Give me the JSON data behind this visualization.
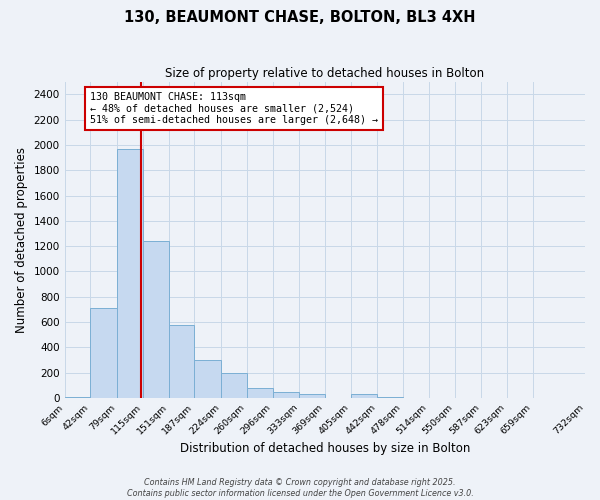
{
  "title": "130, BEAUMONT CHASE, BOLTON, BL3 4XH",
  "subtitle": "Size of property relative to detached houses in Bolton",
  "xlabel": "Distribution of detached houses by size in Bolton",
  "ylabel": "Number of detached properties",
  "bar_values": [
    10,
    710,
    1970,
    1240,
    575,
    300,
    200,
    80,
    45,
    30,
    0,
    30,
    5,
    0,
    0,
    0,
    0,
    0,
    0
  ],
  "bin_edges": [
    6,
    42,
    79,
    115,
    151,
    187,
    224,
    260,
    296,
    333,
    369,
    405,
    442,
    478,
    514,
    550,
    587,
    623,
    659,
    732
  ],
  "tick_labels": [
    "6sqm",
    "42sqm",
    "79sqm",
    "115sqm",
    "151sqm",
    "187sqm",
    "224sqm",
    "260sqm",
    "296sqm",
    "333sqm",
    "369sqm",
    "405sqm",
    "442sqm",
    "478sqm",
    "514sqm",
    "550sqm",
    "587sqm",
    "623sqm",
    "659sqm",
    "732sqm"
  ],
  "bar_color": "#c6d9f0",
  "bar_edge_color": "#7bafd4",
  "vline_x": 113,
  "vline_color": "#cc0000",
  "annotation_line1": "130 BEAUMONT CHASE: 113sqm",
  "annotation_line2": "← 48% of detached houses are smaller (2,524)",
  "annotation_line3": "51% of semi-detached houses are larger (2,648) →",
  "annotation_box_color": "#cc0000",
  "annotation_box_fill": "#ffffff",
  "ylim": [
    0,
    2500
  ],
  "yticks": [
    0,
    200,
    400,
    600,
    800,
    1000,
    1200,
    1400,
    1600,
    1800,
    2000,
    2200,
    2400
  ],
  "grid_color": "#c8d8e8",
  "background_color": "#eef2f8",
  "footer_line1": "Contains HM Land Registry data © Crown copyright and database right 2025.",
  "footer_line2": "Contains public sector information licensed under the Open Government Licence v3.0."
}
